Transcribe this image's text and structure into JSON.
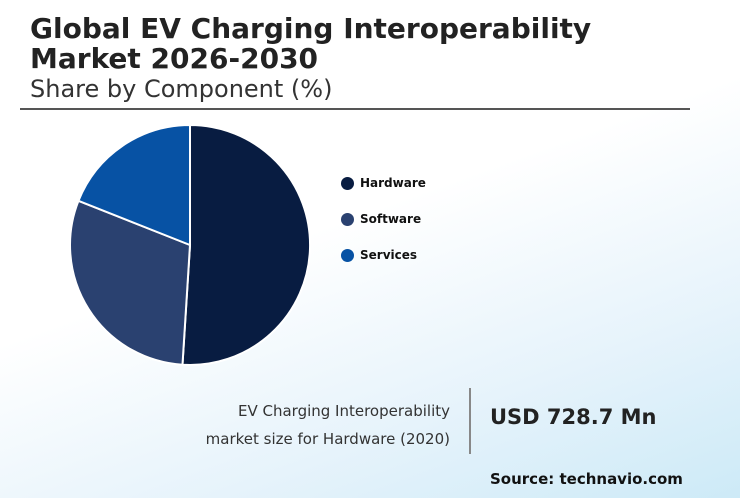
{
  "header": {
    "title": "Global EV Charging Interoperability Market 2026-2030",
    "subtitle": "Share by Component (%)"
  },
  "chart_data": {
    "type": "pie",
    "categories": [
      "Hardware",
      "Software",
      "Services"
    ],
    "values": [
      51,
      30,
      19
    ],
    "colors": [
      "#081c41",
      "#2a4170",
      "#0752a4"
    ],
    "legend": "right",
    "title": "Share by Component (%)"
  },
  "footer": {
    "caption_line1": "EV Charging Interoperability",
    "caption_line2": "market size for Hardware (2020)",
    "value": "USD 728.7 Mn",
    "source": "Source: technavio.com"
  }
}
